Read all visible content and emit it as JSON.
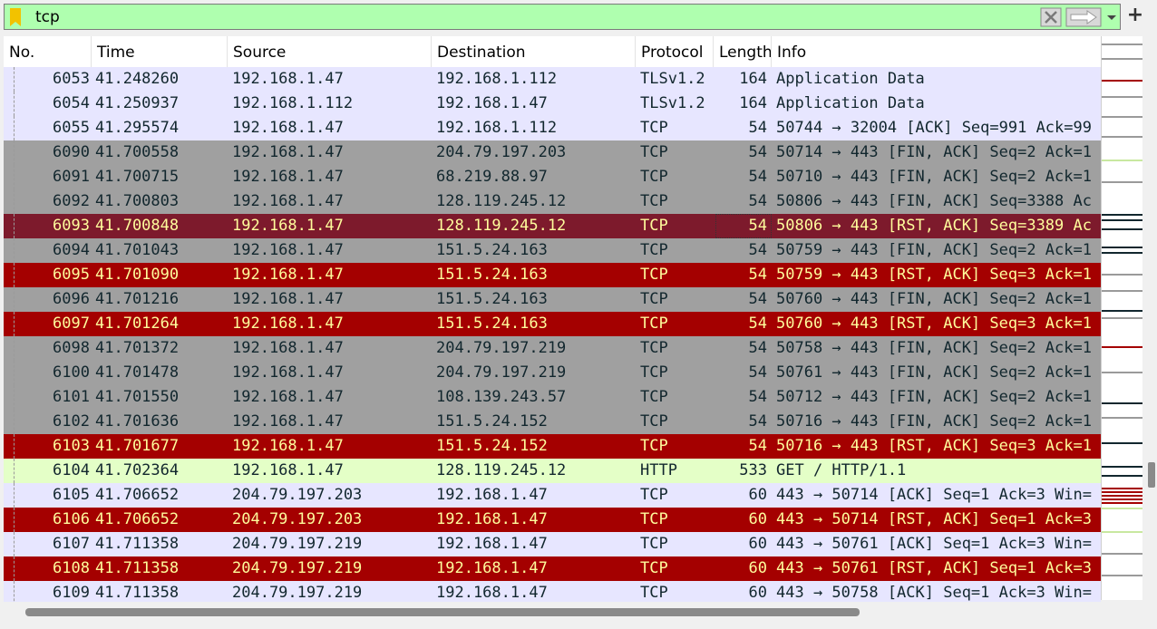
{
  "filter": {
    "value": "tcp",
    "plus_label": "+"
  },
  "columns": {
    "no": "No.",
    "time": "Time",
    "source": "Source",
    "destination": "Destination",
    "protocol": "Protocol",
    "length": "Length",
    "info": "Info"
  },
  "colors": {
    "tls": {
      "bg": "#e7e6ff",
      "fg": "#12272e"
    },
    "tcp": {
      "bg": "#e7e6ff",
      "fg": "#12272e"
    },
    "fin": {
      "bg": "#a0a0a0",
      "fg": "#12272e"
    },
    "rst": {
      "bg": "#a40000",
      "fg": "#fffc9c"
    },
    "selected": {
      "bg": "#7d1a2c",
      "fg": "#fffc9c"
    },
    "http": {
      "bg": "#e4ffc7",
      "fg": "#12272e"
    }
  },
  "packets": [
    {
      "no": "6053",
      "time": "41.248260",
      "source": "192.168.1.47",
      "destination": "192.168.1.112",
      "protocol": "TLSv1.2",
      "length": "164",
      "info": "Application Data",
      "style": "tls"
    },
    {
      "no": "6054",
      "time": "41.250937",
      "source": "192.168.1.112",
      "destination": "192.168.1.47",
      "protocol": "TLSv1.2",
      "length": "164",
      "info": "Application Data",
      "style": "tls"
    },
    {
      "no": "6055",
      "time": "41.295574",
      "source": "192.168.1.47",
      "destination": "192.168.1.112",
      "protocol": "TCP",
      "length": "54",
      "info": "50744 → 32004 [ACK] Seq=991 Ack=99",
      "style": "tcp"
    },
    {
      "no": "6090",
      "time": "41.700558",
      "source": "192.168.1.47",
      "destination": "204.79.197.203",
      "protocol": "TCP",
      "length": "54",
      "info": "50714 → 443 [FIN, ACK] Seq=2 Ack=1",
      "style": "fin"
    },
    {
      "no": "6091",
      "time": "41.700715",
      "source": "192.168.1.47",
      "destination": "68.219.88.97",
      "protocol": "TCP",
      "length": "54",
      "info": "50710 → 443 [FIN, ACK] Seq=2 Ack=1",
      "style": "fin"
    },
    {
      "no": "6092",
      "time": "41.700803",
      "source": "192.168.1.47",
      "destination": "128.119.245.12",
      "protocol": "TCP",
      "length": "54",
      "info": "50806 → 443 [FIN, ACK] Seq=3388 Ac",
      "style": "fin"
    },
    {
      "no": "6093",
      "time": "41.700848",
      "source": "192.168.1.47",
      "destination": "128.119.245.12",
      "protocol": "TCP",
      "length": "54",
      "info": "50806 → 443 [RST, ACK] Seq=3389 Ac",
      "style": "selected"
    },
    {
      "no": "6094",
      "time": "41.701043",
      "source": "192.168.1.47",
      "destination": "151.5.24.163",
      "protocol": "TCP",
      "length": "54",
      "info": "50759 → 443 [FIN, ACK] Seq=2 Ack=1",
      "style": "fin"
    },
    {
      "no": "6095",
      "time": "41.701090",
      "source": "192.168.1.47",
      "destination": "151.5.24.163",
      "protocol": "TCP",
      "length": "54",
      "info": "50759 → 443 [RST, ACK] Seq=3 Ack=1",
      "style": "rst"
    },
    {
      "no": "6096",
      "time": "41.701216",
      "source": "192.168.1.47",
      "destination": "151.5.24.163",
      "protocol": "TCP",
      "length": "54",
      "info": "50760 → 443 [FIN, ACK] Seq=2 Ack=1",
      "style": "fin"
    },
    {
      "no": "6097",
      "time": "41.701264",
      "source": "192.168.1.47",
      "destination": "151.5.24.163",
      "protocol": "TCP",
      "length": "54",
      "info": "50760 → 443 [RST, ACK] Seq=3 Ack=1",
      "style": "rst"
    },
    {
      "no": "6098",
      "time": "41.701372",
      "source": "192.168.1.47",
      "destination": "204.79.197.219",
      "protocol": "TCP",
      "length": "54",
      "info": "50758 → 443 [FIN, ACK] Seq=2 Ack=1",
      "style": "fin"
    },
    {
      "no": "6100",
      "time": "41.701478",
      "source": "192.168.1.47",
      "destination": "204.79.197.219",
      "protocol": "TCP",
      "length": "54",
      "info": "50761 → 443 [FIN, ACK] Seq=2 Ack=1",
      "style": "fin"
    },
    {
      "no": "6101",
      "time": "41.701550",
      "source": "192.168.1.47",
      "destination": "108.139.243.57",
      "protocol": "TCP",
      "length": "54",
      "info": "50712 → 443 [FIN, ACK] Seq=2 Ack=1",
      "style": "fin"
    },
    {
      "no": "6102",
      "time": "41.701636",
      "source": "192.168.1.47",
      "destination": "151.5.24.152",
      "protocol": "TCP",
      "length": "54",
      "info": "50716 → 443 [FIN, ACK] Seq=2 Ack=1",
      "style": "fin"
    },
    {
      "no": "6103",
      "time": "41.701677",
      "source": "192.168.1.47",
      "destination": "151.5.24.152",
      "protocol": "TCP",
      "length": "54",
      "info": "50716 → 443 [RST, ACK] Seq=3 Ack=1",
      "style": "rst"
    },
    {
      "no": "6104",
      "time": "41.702364",
      "source": "192.168.1.47",
      "destination": "128.119.245.12",
      "protocol": "HTTP",
      "length": "533",
      "info": "GET / HTTP/1.1",
      "style": "http"
    },
    {
      "no": "6105",
      "time": "41.706652",
      "source": "204.79.197.203",
      "destination": "192.168.1.47",
      "protocol": "TCP",
      "length": "60",
      "info": "443 → 50714 [ACK] Seq=1 Ack=3 Win=",
      "style": "tcp"
    },
    {
      "no": "6106",
      "time": "41.706652",
      "source": "204.79.197.203",
      "destination": "192.168.1.47",
      "protocol": "TCP",
      "length": "60",
      "info": "443 → 50714 [RST, ACK] Seq=1 Ack=3",
      "style": "rst"
    },
    {
      "no": "6107",
      "time": "41.711358",
      "source": "204.79.197.219",
      "destination": "192.168.1.47",
      "protocol": "TCP",
      "length": "60",
      "info": "443 → 50761 [ACK] Seq=1 Ack=3 Win=",
      "style": "tcp"
    },
    {
      "no": "6108",
      "time": "41.711358",
      "source": "204.79.197.219",
      "destination": "192.168.1.47",
      "protocol": "TCP",
      "length": "60",
      "info": "443 → 50761 [RST, ACK] Seq=1 Ack=3",
      "style": "rst"
    },
    {
      "no": "6109",
      "time": "41.711358",
      "source": "204.79.197.219",
      "destination": "192.168.1.47",
      "protocol": "TCP",
      "length": "60",
      "info": "443 → 50758 [ACK] Seq=1 Ack=3 Win=",
      "style": "tcp"
    }
  ]
}
